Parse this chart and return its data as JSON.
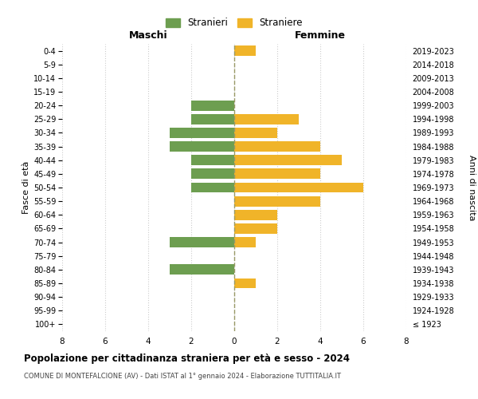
{
  "age_groups": [
    "100+",
    "95-99",
    "90-94",
    "85-89",
    "80-84",
    "75-79",
    "70-74",
    "65-69",
    "60-64",
    "55-59",
    "50-54",
    "45-49",
    "40-44",
    "35-39",
    "30-34",
    "25-29",
    "20-24",
    "15-19",
    "10-14",
    "5-9",
    "0-4"
  ],
  "birth_years": [
    "≤ 1923",
    "1924-1928",
    "1929-1933",
    "1934-1938",
    "1939-1943",
    "1944-1948",
    "1949-1953",
    "1954-1958",
    "1959-1963",
    "1964-1968",
    "1969-1973",
    "1974-1978",
    "1979-1983",
    "1984-1988",
    "1989-1993",
    "1994-1998",
    "1999-2003",
    "2004-2008",
    "2009-2013",
    "2014-2018",
    "2019-2023"
  ],
  "maschi": [
    0,
    0,
    0,
    0,
    3,
    0,
    3,
    0,
    0,
    0,
    2,
    2,
    2,
    3,
    3,
    2,
    2,
    0,
    0,
    0,
    0
  ],
  "femmine": [
    0,
    0,
    0,
    1,
    0,
    0,
    1,
    2,
    2,
    4,
    6,
    4,
    5,
    4,
    2,
    3,
    0,
    0,
    0,
    0,
    1
  ],
  "maschi_color": "#6d9e50",
  "femmine_color": "#f0b429",
  "title": "Popolazione per cittadinanza straniera per età e sesso - 2024",
  "subtitle": "COMUNE DI MONTEFALCIONE (AV) - Dati ISTAT al 1° gennaio 2024 - Elaborazione TUTTITALIA.IT",
  "xlabel_left": "Maschi",
  "xlabel_right": "Femmine",
  "ylabel_left": "Fasce di età",
  "ylabel_right": "Anni di nascita",
  "legend_maschi": "Stranieri",
  "legend_femmine": "Straniere",
  "xlim": 8,
  "bg_color": "#ffffff",
  "grid_color": "#cccccc",
  "dashed_line_color": "#999966"
}
